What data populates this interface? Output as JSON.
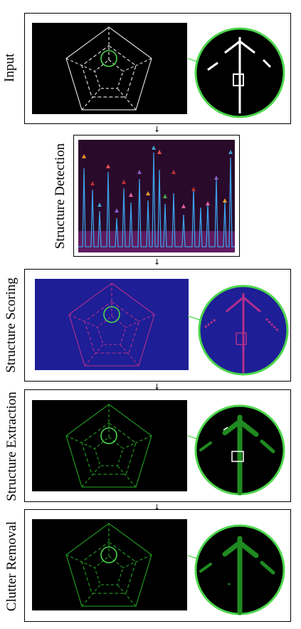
{
  "stages": [
    {
      "id": "input",
      "label": "Input"
    },
    {
      "id": "structure_detection",
      "label": "Structure Detection"
    },
    {
      "id": "structure_scoring",
      "label": "Structure Scoring"
    },
    {
      "id": "structure_extraction",
      "label": "Structure Extraction"
    },
    {
      "id": "clutter_removal",
      "label": "Clutter Removal"
    }
  ],
  "connector_arrow": "↓",
  "colors": {
    "input_lines": "#d8d8d8",
    "zoom_ring": "#4cd64c",
    "scoring_bg": "#1e1e96",
    "scoring_lines": "#b0308c",
    "extraction_lines": "#1f8a1f",
    "detection_bg": "#2a0a2a",
    "detection_line": "#3aa0e8",
    "detection_noise": "#a030a0"
  },
  "detection_peak_marker_colors": [
    "#e8902a",
    "#c03030",
    "#3aa0c8",
    "#e05050",
    "#8060c0",
    "#e8a030",
    "#50a050",
    "#e060a0",
    "#80c040"
  ]
}
